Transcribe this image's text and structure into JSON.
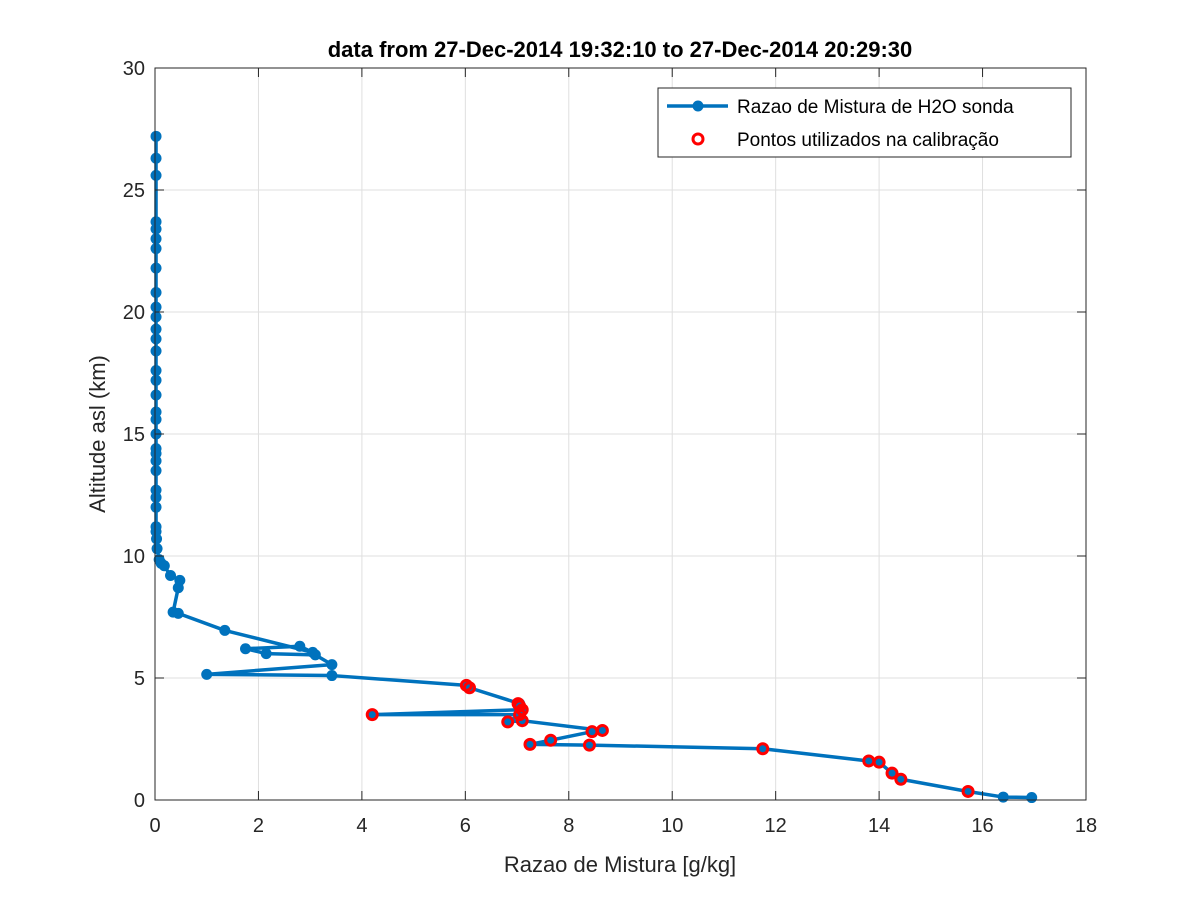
{
  "chart_data": {
    "type": "line",
    "title": "data from 27-Dec-2014 19:32:10 to 27-Dec-2014 20:29:30",
    "xlabel": "Razao de Mistura [g/kg]",
    "ylabel": "Altitude asl (km)",
    "xlim": [
      0,
      18
    ],
    "ylim": [
      0,
      30
    ],
    "xticks": [
      "0",
      "2",
      "4",
      "6",
      "8",
      "10",
      "12",
      "14",
      "16",
      "18"
    ],
    "yticks": [
      "0",
      "5",
      "10",
      "15",
      "20",
      "25",
      "30"
    ],
    "grid": true,
    "legend_position": "top-right",
    "series": [
      {
        "name": "Razao de Mistura de H2O sonda",
        "style": "line-with-markers",
        "color": "#0072BD",
        "x": [
          16.95,
          16.4,
          15.72,
          14.42,
          14.25,
          14.0,
          13.8,
          11.75,
          8.4,
          7.25,
          7.65,
          8.45,
          8.65,
          7.1,
          6.82,
          7.05,
          4.2,
          7.1,
          7.05,
          6.08,
          6.02,
          3.42,
          1.0,
          3.42,
          3.1,
          2.15,
          1.75,
          2.8,
          3.05,
          1.35,
          0.45,
          0.35,
          0.45,
          0.48,
          0.3,
          0.18,
          0.12,
          0.08,
          0.04,
          0.03,
          0.02,
          0.02,
          0.02,
          0.02,
          0.02,
          0.02,
          0.02,
          0.02,
          0.02,
          0.02,
          0.02,
          0.02,
          0.02,
          0.02,
          0.02,
          0.02,
          0.02,
          0.02,
          0.02,
          0.02,
          0.02,
          0.02,
          0.02,
          0.02,
          0.02,
          0.02,
          0.02,
          0.02,
          0.02
        ],
        "y": [
          0.1,
          0.12,
          0.35,
          0.85,
          1.1,
          1.55,
          1.6,
          2.1,
          2.25,
          2.28,
          2.45,
          2.8,
          2.85,
          3.25,
          3.2,
          3.5,
          3.5,
          3.7,
          3.95,
          4.6,
          4.7,
          5.1,
          5.15,
          5.55,
          5.95,
          6.0,
          6.2,
          6.3,
          6.05,
          6.95,
          7.65,
          7.7,
          8.7,
          9.0,
          9.2,
          9.6,
          9.7,
          9.85,
          10.3,
          10.7,
          11.0,
          11.2,
          12.0,
          12.4,
          12.7,
          13.5,
          13.9,
          14.2,
          14.4,
          15.0,
          15.6,
          15.9,
          16.6,
          17.2,
          17.6,
          18.4,
          18.9,
          19.3,
          19.8,
          20.2,
          20.8,
          21.8,
          22.6,
          23.0,
          23.4,
          23.7,
          25.6,
          26.3,
          27.2
        ]
      },
      {
        "name": "Pontos utilizados na calibração",
        "style": "markers-only",
        "color": "#FF0000",
        "x": [
          15.72,
          14.42,
          14.25,
          14.0,
          13.8,
          11.75,
          8.4,
          7.25,
          7.65,
          8.45,
          8.65,
          7.1,
          6.82,
          7.05,
          7.1,
          7.05,
          7.02,
          4.2,
          6.08,
          6.02
        ],
        "y": [
          0.35,
          0.85,
          1.1,
          1.55,
          1.6,
          2.1,
          2.25,
          2.28,
          2.45,
          2.8,
          2.85,
          3.25,
          3.2,
          3.5,
          3.7,
          3.85,
          3.95,
          3.5,
          4.6,
          4.7
        ]
      }
    ]
  }
}
